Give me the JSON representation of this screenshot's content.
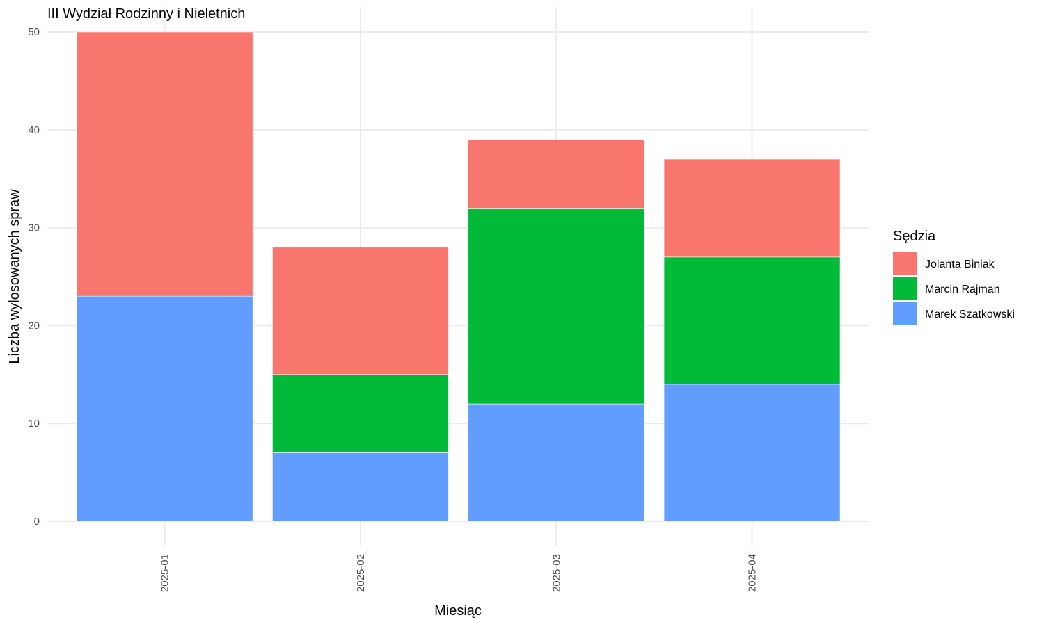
{
  "chart_data": {
    "type": "bar",
    "stacked": true,
    "title": "III Wydział Rodzinny i Nieletnich",
    "xlabel": "Miesiąc",
    "ylabel": "Liczba wylosowanych spraw",
    "categories": [
      "2025-01",
      "2025-02",
      "2025-03",
      "2025-04"
    ],
    "ylim": [
      0,
      50
    ],
    "yticks": [
      0,
      10,
      20,
      30,
      40,
      50
    ],
    "grid": true,
    "legend": {
      "title": "Sędzia",
      "placement": "right"
    },
    "stack_order_bottom_to_top": [
      "Marek Szatkowski",
      "Marcin Rajman",
      "Jolanta Biniak"
    ],
    "series": [
      {
        "name": "Jolanta Biniak",
        "color": "#F8766D",
        "values": [
          27,
          13,
          7,
          10
        ]
      },
      {
        "name": "Marcin Rajman",
        "color": "#00BA38",
        "values": [
          0,
          8,
          20,
          13
        ]
      },
      {
        "name": "Marek Szatkowski",
        "color": "#619CFF",
        "values": [
          23,
          7,
          12,
          14
        ]
      }
    ]
  }
}
